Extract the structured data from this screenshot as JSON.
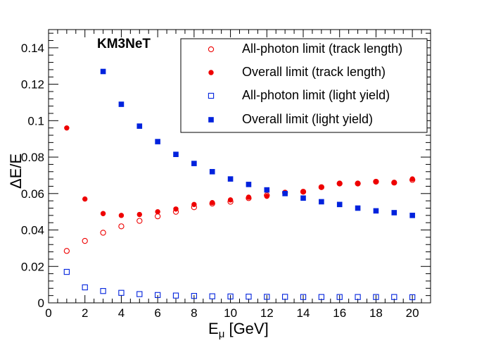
{
  "chart_data": {
    "type": "scatter",
    "title": "",
    "annotation": "KM3NeT",
    "xlabel_base": "E",
    "xlabel_sub": "μ",
    "xlabel_unit": " [GeV]",
    "ylabel": "ΔE/E",
    "xlim": [
      0,
      21
    ],
    "ylim": [
      0,
      0.15
    ],
    "x_major_ticks": [
      0,
      2,
      4,
      6,
      8,
      10,
      12,
      14,
      16,
      18,
      20
    ],
    "x_tick_labels": [
      "0",
      "2",
      "4",
      "6",
      "8",
      "10",
      "12",
      "14",
      "16",
      "18",
      "20"
    ],
    "y_major_ticks": [
      0,
      0.02,
      0.04,
      0.06,
      0.08,
      0.1,
      0.12,
      0.14
    ],
    "y_tick_labels": [
      "0",
      "0.02",
      "0.04",
      "0.06",
      "0.08",
      "0.1",
      "0.12",
      "0.14"
    ],
    "legend_position": "top-right",
    "x": [
      1,
      2,
      3,
      4,
      5,
      6,
      7,
      8,
      9,
      10,
      11,
      12,
      13,
      14,
      15,
      16,
      17,
      18,
      19,
      20
    ],
    "series": [
      {
        "name": "All-photon limit (track length)",
        "marker": "open-circle",
        "color": "#ee0000",
        "x": [
          1,
          2,
          3,
          4,
          5,
          6,
          7,
          8,
          9,
          10,
          11,
          12,
          13,
          14,
          15,
          16,
          17,
          18,
          19,
          20
        ],
        "values": [
          0.0285,
          0.034,
          0.0385,
          0.042,
          0.045,
          0.0475,
          0.05,
          0.0525,
          0.0545,
          0.0555,
          0.0575,
          0.059,
          0.0605,
          0.061,
          0.0635,
          0.0655,
          0.0655,
          0.0665,
          0.066,
          0.0675
        ]
      },
      {
        "name": "Overall limit (track length)",
        "marker": "filled-circle",
        "color": "#ee0000",
        "x": [
          1,
          2,
          3,
          4,
          5,
          6,
          7,
          8,
          9,
          10,
          11,
          12,
          13,
          14,
          15,
          16,
          17,
          18,
          19,
          20
        ],
        "values": [
          0.096,
          0.057,
          0.049,
          0.048,
          0.0485,
          0.05,
          0.0515,
          0.054,
          0.055,
          0.0565,
          0.058,
          0.0585,
          0.0605,
          0.061,
          0.0635,
          0.0655,
          0.0655,
          0.0665,
          0.066,
          0.068
        ]
      },
      {
        "name": "All-photon limit (light yield)",
        "marker": "open-square",
        "color": "#0022dd",
        "x": [
          1,
          2,
          3,
          4,
          5,
          6,
          7,
          8,
          9,
          10,
          11,
          12,
          13,
          14,
          15,
          16,
          17,
          18,
          19,
          20
        ],
        "values": [
          0.017,
          0.0085,
          0.0065,
          0.0055,
          0.0048,
          0.0043,
          0.004,
          0.0038,
          0.0036,
          0.0035,
          0.0034,
          0.0033,
          0.0033,
          0.0032,
          0.0032,
          0.0032,
          0.0032,
          0.0032,
          0.0032,
          0.0031
        ]
      },
      {
        "name": "Overall limit (light yield)",
        "marker": "filled-square",
        "color": "#0022dd",
        "x": [
          3,
          4,
          5,
          6,
          7,
          8,
          9,
          10,
          11,
          12,
          13,
          14,
          15,
          16,
          17,
          18,
          19,
          20
        ],
        "values": [
          0.127,
          0.109,
          0.097,
          0.0885,
          0.0815,
          0.0765,
          0.072,
          0.068,
          0.065,
          0.062,
          0.06,
          0.0575,
          0.0555,
          0.054,
          0.052,
          0.0505,
          0.0495,
          0.048
        ]
      }
    ]
  }
}
